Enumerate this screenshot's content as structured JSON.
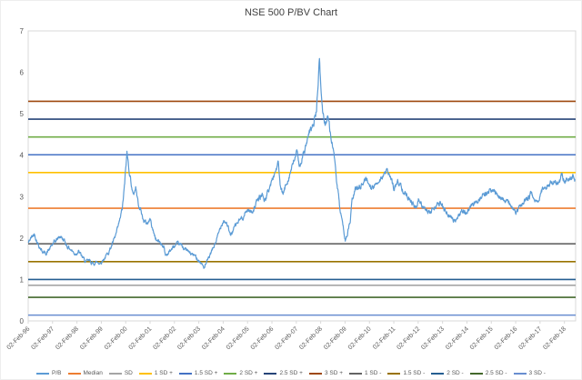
{
  "chart_data": {
    "type": "line",
    "title": "NSE 500 P/BV Chart",
    "ylim": [
      0,
      7
    ],
    "yticks": [
      0,
      1,
      2,
      3,
      4,
      5,
      6,
      7
    ],
    "x_range": [
      1996.09,
      2018.55
    ],
    "x_tick_years": [
      1996.09,
      1997.09,
      1998.09,
      1999.09,
      2000.09,
      2001.09,
      2002.09,
      2003.09,
      2004.09,
      2005.09,
      2006.09,
      2007.09,
      2008.09,
      2009.09,
      2010.09,
      2011.09,
      2012.09,
      2013.09,
      2014.09,
      2015.09,
      2016.09,
      2017.09,
      2018.09
    ],
    "x_labels": [
      "02-Feb-96",
      "02-Feb-97",
      "02-Feb-98",
      "02-Feb-99",
      "02-Feb-00",
      "02-Feb-01",
      "02-Feb-02",
      "02-Feb-03",
      "02-Feb-04",
      "02-Feb-05",
      "02-Feb-06",
      "02-Feb-07",
      "02-Feb-08",
      "02-Feb-09",
      "02-Feb-10",
      "02-Feb-11",
      "02-Feb-12",
      "02-Feb-13",
      "02-Feb-14",
      "02-Feb-15",
      "02-Feb-16",
      "02-Feb-17",
      "02-Feb-18"
    ],
    "series_pb": {
      "name": "P/B",
      "color": "#5B9BD5",
      "points": [
        [
          1996.09,
          1.88
        ],
        [
          1996.2,
          2.0
        ],
        [
          1996.35,
          2.1
        ],
        [
          1996.5,
          1.85
        ],
        [
          1996.65,
          1.7
        ],
        [
          1996.8,
          1.62
        ],
        [
          1996.95,
          1.72
        ],
        [
          1997.1,
          1.85
        ],
        [
          1997.25,
          1.95
        ],
        [
          1997.4,
          2.05
        ],
        [
          1997.55,
          1.95
        ],
        [
          1997.7,
          1.8
        ],
        [
          1997.85,
          1.72
        ],
        [
          1998.0,
          1.62
        ],
        [
          1998.15,
          1.68
        ],
        [
          1998.3,
          1.55
        ],
        [
          1998.45,
          1.42
        ],
        [
          1998.6,
          1.45
        ],
        [
          1998.75,
          1.38
        ],
        [
          1998.9,
          1.42
        ],
        [
          1999.05,
          1.4
        ],
        [
          1999.2,
          1.5
        ],
        [
          1999.35,
          1.62
        ],
        [
          1999.5,
          1.8
        ],
        [
          1999.65,
          2.0
        ],
        [
          1999.8,
          2.3
        ],
        [
          1999.95,
          2.7
        ],
        [
          2000.05,
          3.3
        ],
        [
          2000.14,
          4.05
        ],
        [
          2000.22,
          3.7
        ],
        [
          2000.3,
          3.4
        ],
        [
          2000.4,
          3.0
        ],
        [
          2000.5,
          3.25
        ],
        [
          2000.6,
          2.85
        ],
        [
          2000.7,
          2.7
        ],
        [
          2000.8,
          2.45
        ],
        [
          2000.95,
          2.35
        ],
        [
          2001.1,
          2.45
        ],
        [
          2001.2,
          2.2
        ],
        [
          2001.35,
          1.95
        ],
        [
          2001.5,
          1.9
        ],
        [
          2001.65,
          1.8
        ],
        [
          2001.72,
          1.58
        ],
        [
          2001.85,
          1.65
        ],
        [
          2002.0,
          1.75
        ],
        [
          2002.15,
          1.82
        ],
        [
          2002.3,
          1.85
        ],
        [
          2002.45,
          1.78
        ],
        [
          2002.6,
          1.7
        ],
        [
          2002.75,
          1.62
        ],
        [
          2002.9,
          1.58
        ],
        [
          2003.05,
          1.5
        ],
        [
          2003.2,
          1.38
        ],
        [
          2003.32,
          1.28
        ],
        [
          2003.45,
          1.45
        ],
        [
          2003.6,
          1.65
        ],
        [
          2003.75,
          1.85
        ],
        [
          2003.9,
          2.1
        ],
        [
          2004.0,
          2.3
        ],
        [
          2004.1,
          2.45
        ],
        [
          2004.25,
          2.35
        ],
        [
          2004.38,
          2.05
        ],
        [
          2004.5,
          2.2
        ],
        [
          2004.65,
          2.35
        ],
        [
          2004.8,
          2.45
        ],
        [
          2004.95,
          2.55
        ],
        [
          2005.1,
          2.7
        ],
        [
          2005.25,
          2.62
        ],
        [
          2005.4,
          2.78
        ],
        [
          2005.55,
          2.95
        ],
        [
          2005.7,
          3.05
        ],
        [
          2005.8,
          2.9
        ],
        [
          2005.95,
          3.15
        ],
        [
          2006.1,
          3.4
        ],
        [
          2006.25,
          3.65
        ],
        [
          2006.35,
          3.8
        ],
        [
          2006.45,
          3.15
        ],
        [
          2006.55,
          3.05
        ],
        [
          2006.7,
          3.35
        ],
        [
          2006.85,
          3.6
        ],
        [
          2007.0,
          3.85
        ],
        [
          2007.1,
          4.1
        ],
        [
          2007.2,
          3.75
        ],
        [
          2007.35,
          3.95
        ],
        [
          2007.5,
          4.25
        ],
        [
          2007.65,
          4.55
        ],
        [
          2007.8,
          4.75
        ],
        [
          2007.92,
          5.1
        ],
        [
          2008.0,
          5.9
        ],
        [
          2008.04,
          6.3
        ],
        [
          2008.1,
          5.6
        ],
        [
          2008.18,
          5.0
        ],
        [
          2008.28,
          4.75
        ],
        [
          2008.38,
          5.0
        ],
        [
          2008.5,
          4.45
        ],
        [
          2008.6,
          4.2
        ],
        [
          2008.7,
          3.6
        ],
        [
          2008.8,
          3.1
        ],
        [
          2008.9,
          2.6
        ],
        [
          2009.0,
          2.25
        ],
        [
          2009.1,
          1.95
        ],
        [
          2009.2,
          2.15
        ],
        [
          2009.3,
          2.4
        ],
        [
          2009.38,
          2.9
        ],
        [
          2009.5,
          3.15
        ],
        [
          2009.65,
          3.25
        ],
        [
          2009.8,
          3.3
        ],
        [
          2009.95,
          3.45
        ],
        [
          2010.1,
          3.3
        ],
        [
          2010.25,
          3.2
        ],
        [
          2010.4,
          3.35
        ],
        [
          2010.55,
          3.45
        ],
        [
          2010.7,
          3.55
        ],
        [
          2010.85,
          3.6
        ],
        [
          2010.95,
          3.45
        ],
        [
          2011.1,
          3.2
        ],
        [
          2011.25,
          3.35
        ],
        [
          2011.4,
          3.25
        ],
        [
          2011.55,
          3.1
        ],
        [
          2011.7,
          3.0
        ],
        [
          2011.85,
          2.85
        ],
        [
          2012.0,
          2.7
        ],
        [
          2012.1,
          2.9
        ],
        [
          2012.25,
          2.8
        ],
        [
          2012.4,
          2.65
        ],
        [
          2012.55,
          2.6
        ],
        [
          2012.7,
          2.72
        ],
        [
          2012.85,
          2.8
        ],
        [
          2013.0,
          2.85
        ],
        [
          2013.15,
          2.7
        ],
        [
          2013.3,
          2.6
        ],
        [
          2013.45,
          2.5
        ],
        [
          2013.6,
          2.42
        ],
        [
          2013.75,
          2.55
        ],
        [
          2013.9,
          2.65
        ],
        [
          2014.05,
          2.6
        ],
        [
          2014.2,
          2.7
        ],
        [
          2014.35,
          2.8
        ],
        [
          2014.5,
          2.9
        ],
        [
          2014.65,
          3.0
        ],
        [
          2014.8,
          3.05
        ],
        [
          2014.95,
          3.1
        ],
        [
          2015.1,
          3.15
        ],
        [
          2015.25,
          3.1
        ],
        [
          2015.4,
          3.05
        ],
        [
          2015.55,
          2.95
        ],
        [
          2015.7,
          2.9
        ],
        [
          2015.85,
          2.8
        ],
        [
          2016.0,
          2.7
        ],
        [
          2016.1,
          2.6
        ],
        [
          2016.25,
          2.75
        ],
        [
          2016.4,
          2.85
        ],
        [
          2016.55,
          2.95
        ],
        [
          2016.7,
          3.05
        ],
        [
          2016.85,
          2.95
        ],
        [
          2016.95,
          2.85
        ],
        [
          2017.1,
          3.05
        ],
        [
          2017.25,
          3.2
        ],
        [
          2017.4,
          3.3
        ],
        [
          2017.55,
          3.35
        ],
        [
          2017.7,
          3.4
        ],
        [
          2017.85,
          3.3
        ],
        [
          2018.0,
          3.5
        ],
        [
          2018.1,
          3.35
        ],
        [
          2018.25,
          3.45
        ],
        [
          2018.4,
          3.5
        ],
        [
          2018.52,
          3.42
        ]
      ]
    },
    "h_lines": [
      {
        "label": "Median",
        "color": "#ED7D31",
        "value": 2.72
      },
      {
        "label": "SD",
        "color": "#A5A5A5",
        "value": 0.86
      },
      {
        "label": "1 SD +",
        "color": "#FFC000",
        "value": 3.58
      },
      {
        "label": "1.5 SD +",
        "color": "#4472C4",
        "value": 4.01
      },
      {
        "label": "2 SD +",
        "color": "#70AD47",
        "value": 4.44
      },
      {
        "label": "2.5 SD +",
        "color": "#264478",
        "value": 4.87
      },
      {
        "label": "3 SD +",
        "color": "#9E480E",
        "value": 5.3
      },
      {
        "label": "1 SD -",
        "color": "#636363",
        "value": 1.86
      },
      {
        "label": "1.5 SD -",
        "color": "#997300",
        "value": 1.43
      },
      {
        "label": "2 SD -",
        "color": "#255E91",
        "value": 1.0
      },
      {
        "label": "2.5 SD -",
        "color": "#43682B",
        "value": 0.57
      },
      {
        "label": "3 SD -",
        "color": "#698ED0",
        "value": 0.14
      }
    ],
    "legend_position": "bottom",
    "grid": false,
    "axis_text_color": "#595959",
    "border_color": "#D9D9D9"
  }
}
